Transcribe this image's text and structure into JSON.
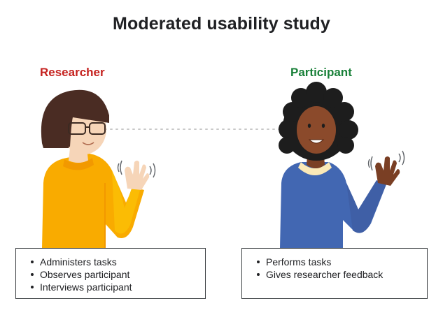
{
  "title": "Moderated usability study",
  "researcher": {
    "label": "Researcher",
    "tasks": [
      "Administers tasks",
      "Observes participant",
      "Interviews participant"
    ]
  },
  "participant": {
    "label": "Participant",
    "tasks": [
      "Performs tasks",
      "Gives researcher feedback"
    ]
  },
  "colors": {
    "researcher_label": "#c5221f",
    "participant_label": "#188038",
    "researcher_shirt": "#f9ab00",
    "participant_shirt": "#4267b2"
  }
}
